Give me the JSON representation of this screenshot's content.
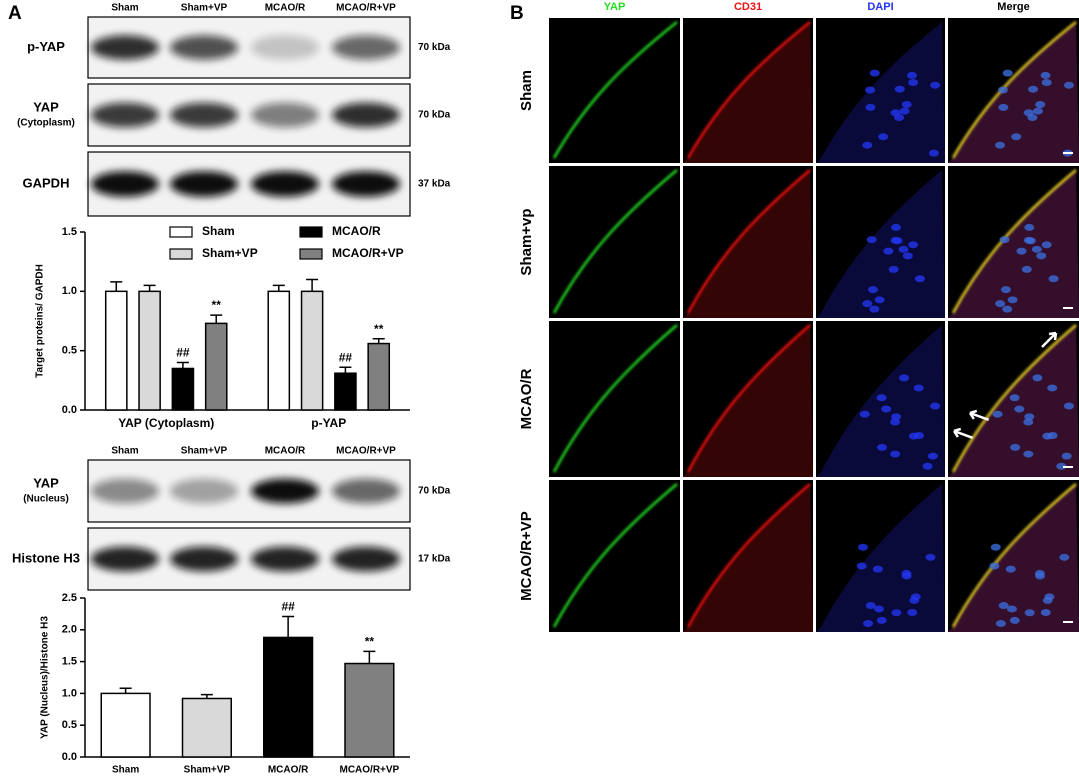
{
  "panel_a": {
    "label": "A",
    "blot_top": {
      "lanes": [
        "Sham",
        "Sham+VP",
        "MCAO/R",
        "MCAO/R+VP"
      ],
      "rows": [
        {
          "name": "p-YAP",
          "size": "70 kDa"
        },
        {
          "name": "YAP",
          "sub": "(Cytoplasm)",
          "size": "70 kDa"
        },
        {
          "name": "GAPDH",
          "size": "37 kDa"
        }
      ]
    },
    "blot_bottom": {
      "lanes": [
        "Sham",
        "Sham+VP",
        "MCAO/R",
        "MCAO/R+VP"
      ],
      "rows": [
        {
          "name": "YAP",
          "sub": "(Nucleus)",
          "size": "70 kDa"
        },
        {
          "name": "Histone H3",
          "size": "17 kDa"
        }
      ]
    }
  },
  "chart_data": [
    {
      "type": "bar",
      "y_label": "Target proteins/ GAPDH",
      "categories": [
        "YAP (Cytoplasm)",
        "p-YAP"
      ],
      "series": [
        {
          "name": "Sham",
          "color": "#ffffff",
          "values": [
            1.0,
            1.0
          ],
          "errors": [
            0.08,
            0.05
          ]
        },
        {
          "name": "Sham+VP",
          "color": "#d9d9d9",
          "values": [
            1.0,
            1.0
          ],
          "errors": [
            0.05,
            0.1
          ]
        },
        {
          "name": "MCAO/R",
          "color": "#000000",
          "values": [
            0.35,
            0.31
          ],
          "errors": [
            0.05,
            0.05
          ],
          "annotations": [
            "##",
            "##"
          ]
        },
        {
          "name": "MCAO/R+VP",
          "color": "#808080",
          "values": [
            0.73,
            0.56
          ],
          "errors": [
            0.07,
            0.04
          ],
          "annotations": [
            "**",
            "**"
          ]
        }
      ],
      "ylim": [
        0,
        1.5
      ],
      "yticks": [
        {
          "value": 0,
          "label": "0.0"
        },
        0.5,
        {
          "value": 1,
          "label": "1.0"
        },
        1.5
      ]
    },
    {
      "type": "bar",
      "y_label": "YAP (Nucleus)/Histone H3",
      "categories": [
        "Sham",
        "Sham+VP",
        "MCAO/R",
        "MCAO/R+VP"
      ],
      "values": [
        1.0,
        0.92,
        1.88,
        1.47
      ],
      "errors": [
        0.08,
        0.06,
        0.33,
        0.19
      ],
      "colors": [
        "#ffffff",
        "#d9d9d9",
        "#000000",
        "#808080"
      ],
      "annotations": [
        null,
        null,
        "##",
        "**"
      ],
      "ylim": [
        0,
        2.5
      ],
      "yticks": [
        {
          "value": 0,
          "label": "0.0"
        },
        0.5,
        {
          "value": 1,
          "label": "1.0"
        },
        1.5,
        {
          "value": 2,
          "label": "2.0"
        },
        2.5
      ]
    }
  ],
  "panel_b": {
    "label": "B",
    "channels": [
      {
        "name": "YAP",
        "color": "#22dd22"
      },
      {
        "name": "CD31",
        "color": "#ee1111"
      },
      {
        "name": "DAPI",
        "color": "#2233ee"
      },
      {
        "name": "Merge",
        "color": "#000000"
      }
    ],
    "groups": [
      "Sham",
      "Sham+vp",
      "MCAO/R",
      "MCAO/R+VP"
    ]
  }
}
